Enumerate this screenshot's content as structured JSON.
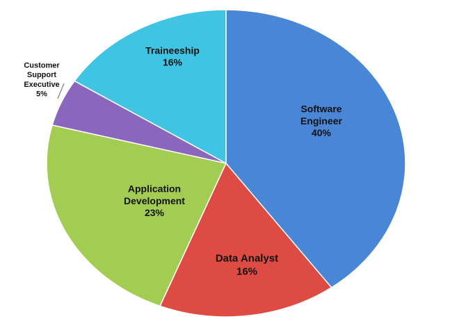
{
  "chart_data": {
    "type": "pie",
    "categories": [
      "Software Engineer",
      "Data Analyst",
      "Application Development",
      "Customer Support Executive",
      "Traineeship"
    ],
    "values": [
      40,
      16,
      23,
      5,
      16
    ],
    "value_labels": [
      "40%",
      "16%",
      "23%",
      "5%",
      "16%"
    ],
    "colors": [
      "#4a86d6",
      "#de4b43",
      "#a3cc52",
      "#8a66bd",
      "#3fc4e3"
    ]
  }
}
